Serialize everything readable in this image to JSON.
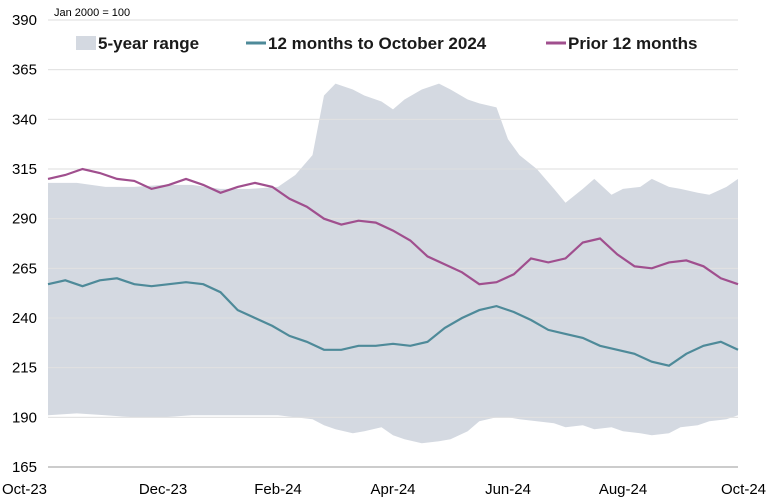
{
  "chart_data": {
    "type": "line",
    "title": "",
    "units_note": "Jan 2000 = 100",
    "xlabel": "",
    "ylabel": "",
    "ylim": [
      165,
      390
    ],
    "yticks": [
      165,
      190,
      215,
      240,
      265,
      290,
      315,
      340,
      365,
      390
    ],
    "x_tick_labels": [
      "Oct-23",
      "Dec-23",
      "Feb-24",
      "Apr-24",
      "Jun-24",
      "Aug-24",
      "Oct-24"
    ],
    "x_range": [
      0,
      12
    ],
    "grid": true,
    "legend_position": "top",
    "colors": {
      "range": "#d4d9e1",
      "current": "#4e8a99",
      "prior": "#a04f8e",
      "grid": "#c8c8c8"
    },
    "band": {
      "name": "5-year range",
      "x": [
        0,
        0.5,
        1,
        1.5,
        2,
        2.5,
        3,
        3.5,
        4,
        4.3,
        4.6,
        4.8,
        5,
        5.3,
        5.5,
        5.8,
        6,
        6.2,
        6.5,
        6.8,
        7,
        7.3,
        7.5,
        7.8,
        8,
        8.2,
        8.5,
        8.8,
        9,
        9.3,
        9.5,
        9.8,
        10,
        10.3,
        10.5,
        10.8,
        11,
        11.3,
        11.5,
        11.8,
        12
      ],
      "upper": [
        308,
        308,
        306,
        306,
        307,
        307,
        305,
        305,
        306,
        312,
        322,
        352,
        358,
        355,
        352,
        349,
        345,
        350,
        355,
        358,
        355,
        350,
        348,
        346,
        330,
        322,
        315,
        305,
        298,
        305,
        310,
        302,
        305,
        306,
        310,
        306,
        305,
        303,
        302,
        306,
        310
      ],
      "lower": [
        191,
        192,
        191,
        190,
        190,
        191,
        191,
        191,
        191,
        190,
        189,
        186,
        184,
        182,
        183,
        185,
        181,
        179,
        177,
        178,
        179,
        183,
        188,
        190,
        190,
        189,
        188,
        187,
        185,
        186,
        184,
        185,
        183,
        182,
        181,
        182,
        185,
        186,
        188,
        189,
        191
      ]
    },
    "series": [
      {
        "name": "12 months to October 2024",
        "x": [
          0,
          0.3,
          0.6,
          0.9,
          1.2,
          1.5,
          1.8,
          2.1,
          2.4,
          2.7,
          3.0,
          3.3,
          3.6,
          3.9,
          4.2,
          4.5,
          4.8,
          5.1,
          5.4,
          5.7,
          6.0,
          6.3,
          6.6,
          6.9,
          7.2,
          7.5,
          7.8,
          8.1,
          8.4,
          8.7,
          9.0,
          9.3,
          9.6,
          9.9,
          10.2,
          10.5,
          10.8,
          11.1,
          11.4,
          11.7,
          12.0
        ],
        "values": [
          257,
          259,
          256,
          259,
          260,
          257,
          256,
          257,
          258,
          257,
          253,
          244,
          240,
          236,
          231,
          228,
          224,
          224,
          226,
          226,
          227,
          226,
          228,
          235,
          240,
          244,
          246,
          243,
          239,
          234,
          232,
          230,
          226,
          224,
          222,
          218,
          216,
          222,
          226,
          228,
          224
        ]
      },
      {
        "name": "Prior 12 months",
        "x": [
          0,
          0.3,
          0.6,
          0.9,
          1.2,
          1.5,
          1.8,
          2.1,
          2.4,
          2.7,
          3.0,
          3.3,
          3.6,
          3.9,
          4.2,
          4.5,
          4.8,
          5.1,
          5.4,
          5.7,
          6.0,
          6.3,
          6.6,
          6.9,
          7.2,
          7.5,
          7.8,
          8.1,
          8.4,
          8.7,
          9.0,
          9.3,
          9.6,
          9.9,
          10.2,
          10.5,
          10.8,
          11.1,
          11.4,
          11.7,
          12.0
        ],
        "values": [
          310,
          312,
          315,
          313,
          310,
          309,
          305,
          307,
          310,
          307,
          303,
          306,
          308,
          306,
          300,
          296,
          290,
          287,
          289,
          288,
          284,
          279,
          271,
          267,
          263,
          257,
          258,
          262,
          270,
          268,
          270,
          278,
          280,
          272,
          266,
          265,
          268,
          269,
          266,
          260,
          257
        ]
      }
    ]
  }
}
